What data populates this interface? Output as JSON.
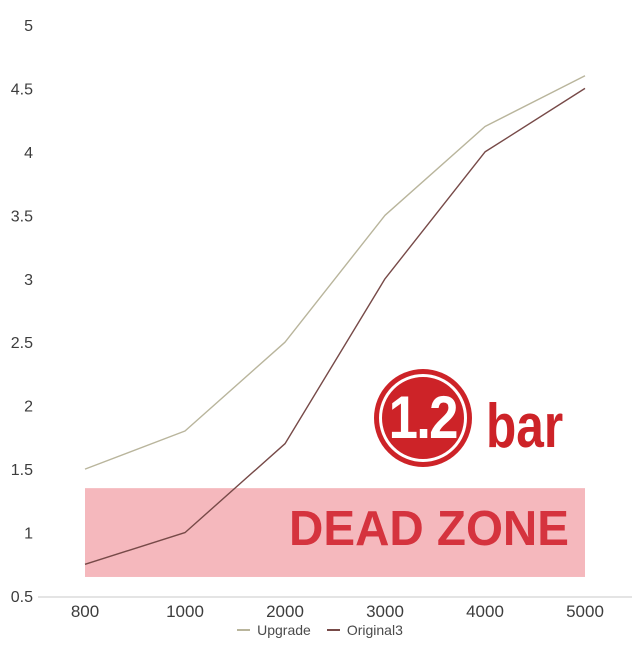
{
  "chart_data": {
    "type": "line",
    "categories": [
      "800",
      "1000",
      "2000",
      "3000",
      "4000",
      "5000"
    ],
    "series": [
      {
        "name": "Upgrade",
        "color": "#b9b59c",
        "values": [
          1.5,
          1.8,
          2.5,
          3.5,
          4.2,
          4.6
        ]
      },
      {
        "name": "Original3",
        "color": "#774a48",
        "values": [
          0.75,
          1.0,
          1.7,
          3.0,
          4.0,
          4.5
        ]
      }
    ],
    "title": "",
    "xlabel": "",
    "ylabel": "",
    "ylim": [
      0.5,
      5
    ],
    "yticks": [
      0.5,
      1,
      1.5,
      2,
      2.5,
      3,
      3.5,
      4,
      4.5,
      5
    ],
    "grid": false,
    "legend_position": "bottom",
    "axis_line_color": "#dcdcdc",
    "tick_label_color": "#3d3d3d",
    "dead_zone": {
      "label": "DEAD ZONE",
      "from": 0.65,
      "to": 1.35,
      "band_color": "#f5b8bd",
      "label_color": "#d5333e"
    },
    "annotation_badge": {
      "value": "1.2",
      "unit": "bar",
      "color": "#cd2328"
    }
  }
}
